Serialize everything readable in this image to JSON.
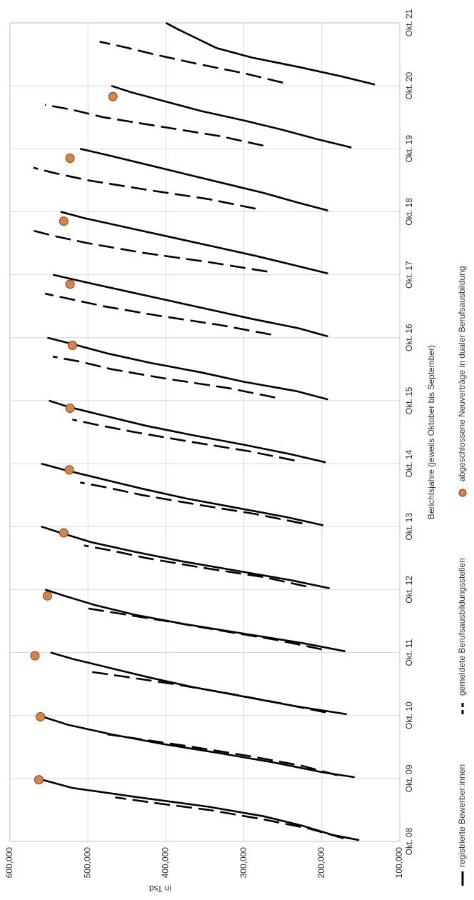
{
  "chart_data": {
    "type": "line",
    "orientation": "rotated-90-clockwise",
    "title": "",
    "xlabel": "Berichtsjahre (jeweils Oktober bis September)",
    "ylabel": "in Tsd.",
    "ylim": [
      100000,
      600000
    ],
    "y_ticks": [
      "100,000",
      "200,000",
      "300,000",
      "400,000",
      "500,000",
      "600,000"
    ],
    "y_tick_values": [
      100000,
      200000,
      300000,
      400000,
      500000,
      600000
    ],
    "categories": [
      "Okt. 08",
      "Okt. 09",
      "Okt. 10",
      "Okt. 11",
      "Okt. 12",
      "Okt. 13",
      "Okt. 14",
      "Okt. 15",
      "Okt. 16",
      "Okt. 17",
      "Okt. 18",
      "Okt. 19",
      "Okt. 20",
      "Okt. 21"
    ],
    "grid": true,
    "legend_position": "bottom",
    "colors": {
      "applicants": "#000000",
      "places": "#000000",
      "contracts": "#D98446",
      "grid": "#d9d9d9"
    },
    "legend": [
      {
        "key": "applicants",
        "label": "registrierte Bewerber:innen",
        "style": "solid"
      },
      {
        "key": "places",
        "label": "gemeldete Berufsausbildungsstellen",
        "style": "dashed"
      },
      {
        "key": "contracts",
        "label": "abgeschlossene Neuverträge in dualer Berufsausbildung",
        "style": "marker"
      }
    ],
    "series": [
      {
        "name": "registrierte Bewerber:innen",
        "key": "applicants",
        "segments": [
          {
            "x": [
              0.02,
              0.1,
              0.25,
              0.4,
              0.55,
              0.7,
              0.85,
              1.0
            ],
            "y": [
              152000,
              185000,
              225000,
              275000,
              345000,
              435000,
              520000,
              565000
            ]
          },
          {
            "x": [
              1.02,
              1.1,
              1.25,
              1.4,
              1.55,
              1.7,
              1.85,
              2.0
            ],
            "y": [
              158000,
              200000,
              260000,
              330000,
              405000,
              470000,
              525000,
              563000
            ]
          },
          {
            "x": [
              2.02,
              2.15,
              2.3,
              2.45,
              2.6,
              2.75,
              2.9,
              3.0
            ],
            "y": [
              168000,
              235000,
              300000,
              365000,
              420000,
              470000,
              520000,
              548000
            ]
          },
          {
            "x": [
              3.02,
              3.15,
              3.3,
              3.45,
              3.6,
              3.75,
              3.9,
              4.0
            ],
            "y": [
              170000,
              225000,
              300000,
              375000,
              440000,
              490000,
              530000,
              555000
            ]
          },
          {
            "x": [
              4.02,
              4.15,
              4.3,
              4.45,
              4.6,
              4.75,
              4.9,
              5.0
            ],
            "y": [
              190000,
              240000,
              310000,
              380000,
              440000,
              495000,
              535000,
              560000
            ]
          },
          {
            "x": [
              5.02,
              5.15,
              5.3,
              5.45,
              5.6,
              5.75,
              5.9,
              6.0
            ],
            "y": [
              198000,
              245000,
              310000,
              375000,
              430000,
              480000,
              530000,
              560000
            ]
          },
          {
            "x": [
              6.02,
              6.15,
              6.3,
              6.45,
              6.6,
              6.75,
              6.9,
              7.0
            ],
            "y": [
              195000,
              240000,
              300000,
              365000,
              425000,
              475000,
              525000,
              550000
            ]
          },
          {
            "x": [
              7.02,
              7.15,
              7.3,
              7.45,
              7.6,
              7.75,
              7.9,
              8.0
            ],
            "y": [
              192000,
              232000,
              300000,
              355000,
              420000,
              475000,
              520000,
              552000
            ]
          },
          {
            "x": [
              8.02,
              8.15,
              8.3,
              8.45,
              8.6,
              8.75,
              8.9,
              9.0
            ],
            "y": [
              192000,
              230000,
              290000,
              345000,
              400000,
              455000,
              510000,
              545000
            ]
          },
          {
            "x": [
              9.02,
              9.15,
              9.3,
              9.45,
              9.6,
              9.75,
              9.9,
              10.0
            ],
            "y": [
              192000,
              235000,
              285000,
              340000,
              395000,
              450000,
              505000,
              535000
            ]
          },
          {
            "x": [
              10.02,
              10.15,
              10.3,
              10.45,
              10.6,
              10.75,
              10.9,
              11.0
            ],
            "y": [
              192000,
              232000,
              275000,
              325000,
              375000,
              425000,
              475000,
              510000
            ]
          },
          {
            "x": [
              11.02,
              11.15,
              11.3,
              11.45,
              11.6,
              11.75,
              11.9,
              12.0
            ],
            "y": [
              162000,
              205000,
              250000,
              300000,
              355000,
              400000,
              445000,
              470000
            ]
          },
          {
            "x": [
              12.02,
              12.15,
              12.3,
              12.45,
              12.6,
              12.75,
              12.9,
              13.0
            ],
            "y": [
              132000,
              175000,
              230000,
              290000,
              335000,
              360000,
              385000,
              400000
            ]
          }
        ]
      },
      {
        "name": "gemeldete Berufsausbildungsstellen",
        "key": "places",
        "segments": [
          {
            "x": [
              0.05,
              0.2,
              0.35,
              0.5,
              0.62,
              0.7
            ],
            "y": [
              172000,
              215000,
              275000,
              345000,
              420000,
              465000
            ]
          },
          {
            "x": [
              1.05,
              1.2,
              1.35,
              1.5,
              1.62,
              1.7
            ],
            "y": [
              180000,
              225000,
              290000,
              365000,
              430000,
              475000
            ]
          },
          {
            "x": [
              2.05,
              2.2,
              2.35,
              2.5,
              2.62,
              2.7
            ],
            "y": [
              195000,
              255000,
              320000,
              390000,
              455000,
              500000
            ]
          },
          {
            "x": [
              3.05,
              3.2,
              3.35,
              3.5,
              3.62,
              3.7
            ],
            "y": [
              200000,
              258000,
              330000,
              400000,
              460000,
              500000
            ]
          },
          {
            "x": [
              4.05,
              4.2,
              4.35,
              4.5,
              4.62,
              4.7
            ],
            "y": [
              220000,
              275000,
              355000,
              425000,
              470000,
              505000
            ]
          },
          {
            "x": [
              5.05,
              5.2,
              5.35,
              5.5,
              5.62,
              5.7
            ],
            "y": [
              225000,
              285000,
              360000,
              430000,
              475000,
              510000
            ]
          },
          {
            "x": [
              6.05,
              6.2,
              6.35,
              6.5,
              6.62,
              6.7
            ],
            "y": [
              235000,
              295000,
              370000,
              440000,
              490000,
              520000
            ]
          },
          {
            "x": [
              7.05,
              7.2,
              7.35,
              7.5,
              7.62,
              7.7
            ],
            "y": [
              260000,
              320000,
              400000,
              470000,
              510000,
              545000
            ]
          },
          {
            "x": [
              8.05,
              8.2,
              8.35,
              8.5,
              8.62,
              8.7
            ],
            "y": [
              265000,
              330000,
              410000,
              480000,
              525000,
              555000
            ]
          },
          {
            "x": [
              9.05,
              9.2,
              9.35,
              9.5,
              9.62,
              9.7
            ],
            "y": [
              270000,
              345000,
              430000,
              500000,
              545000,
              570000
            ]
          },
          {
            "x": [
              10.05,
              10.2,
              10.35,
              10.5,
              10.62,
              10.7
            ],
            "y": [
              285000,
              345000,
              425000,
              500000,
              545000,
              570000
            ]
          },
          {
            "x": [
              11.05,
              11.2,
              11.35,
              11.5,
              11.62,
              11.7
            ],
            "y": [
              275000,
              330000,
              405000,
              480000,
              520000,
              555000
            ]
          },
          {
            "x": [
              12.05,
              12.2,
              12.35,
              12.5,
              12.62,
              12.7
            ],
            "y": [
              250000,
              300000,
              360000,
              415000,
              455000,
              485000
            ]
          }
        ]
      },
      {
        "name": "abgeschlossene Neuverträge in dualer Berufsausbildung",
        "key": "contracts",
        "points": [
          {
            "x": 0.98,
            "y": 563000
          },
          {
            "x": 1.98,
            "y": 561000
          },
          {
            "x": 2.95,
            "y": 568000
          },
          {
            "x": 3.9,
            "y": 552000
          },
          {
            "x": 4.9,
            "y": 531000
          },
          {
            "x": 5.9,
            "y": 524000
          },
          {
            "x": 6.88,
            "y": 523000
          },
          {
            "x": 7.88,
            "y": 520000
          },
          {
            "x": 8.85,
            "y": 523000
          },
          {
            "x": 9.85,
            "y": 531000
          },
          {
            "x": 10.85,
            "y": 523000
          },
          {
            "x": 11.83,
            "y": 468000
          }
        ]
      }
    ]
  }
}
